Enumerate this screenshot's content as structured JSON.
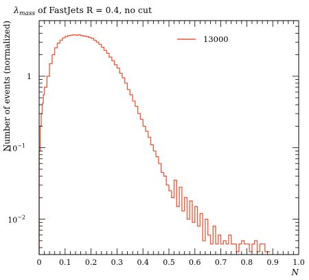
{
  "chart_data": {
    "type": "line",
    "style": "histogram-step",
    "title": "of FastJets R = 0.4, no cut",
    "title_symbol": "λ",
    "title_subscript": "mass",
    "xlabel": "N",
    "ylabel": "Number of events (normalized)",
    "xlim": [
      0,
      1
    ],
    "ylim": [
      0.0032,
      6
    ],
    "yscale": "log",
    "grid": false,
    "legend_position": "top-right",
    "x_ticks": [
      {
        "value": 0,
        "label": "0"
      },
      {
        "value": 0.1,
        "label": "0.1"
      },
      {
        "value": 0.2,
        "label": "0.2"
      },
      {
        "value": 0.3,
        "label": "0.3"
      },
      {
        "value": 0.4,
        "label": "0.4"
      },
      {
        "value": 0.5,
        "label": "0.5"
      },
      {
        "value": 0.6,
        "label": "0.6"
      },
      {
        "value": 0.7,
        "label": "0.7"
      },
      {
        "value": 0.8,
        "label": "0.8"
      },
      {
        "value": 0.9,
        "label": "0.9"
      },
      {
        "value": 1.0,
        "label": "1.0"
      }
    ],
    "y_ticks": [
      {
        "value": 1,
        "base": "1",
        "exp": ""
      },
      {
        "value": 0.1,
        "base": "10",
        "exp": "−1"
      },
      {
        "value": 0.01,
        "base": "10",
        "exp": "−2"
      }
    ],
    "series": [
      {
        "name": "13000",
        "color": "#ee5533",
        "x": [
          0.0,
          0.004,
          0.008,
          0.012,
          0.016,
          0.02,
          0.03,
          0.04,
          0.05,
          0.06,
          0.07,
          0.08,
          0.09,
          0.1,
          0.11,
          0.12,
          0.13,
          0.14,
          0.15,
          0.16,
          0.17,
          0.18,
          0.19,
          0.2,
          0.21,
          0.22,
          0.23,
          0.24,
          0.25,
          0.26,
          0.27,
          0.28,
          0.29,
          0.3,
          0.31,
          0.32,
          0.33,
          0.34,
          0.35,
          0.36,
          0.37,
          0.38,
          0.39,
          0.4,
          0.41,
          0.42,
          0.43,
          0.44,
          0.45,
          0.46,
          0.47,
          0.48,
          0.49,
          0.5,
          0.51,
          0.52,
          0.53,
          0.54,
          0.55,
          0.56,
          0.57,
          0.58,
          0.59,
          0.6,
          0.61,
          0.62,
          0.63,
          0.64,
          0.65,
          0.66,
          0.67,
          0.68,
          0.69,
          0.7,
          0.71,
          0.72,
          0.73,
          0.74,
          0.75,
          0.76,
          0.77,
          0.78,
          0.79,
          0.8,
          0.81,
          0.82,
          0.83,
          0.84,
          0.85,
          0.86,
          0.87,
          0.88
        ],
        "values": [
          0.09,
          0.2,
          0.3,
          0.42,
          0.55,
          0.7,
          1.0,
          1.5,
          2.0,
          2.5,
          2.9,
          3.2,
          3.45,
          3.6,
          3.7,
          3.75,
          3.8,
          3.75,
          3.8,
          3.7,
          3.65,
          3.6,
          3.5,
          3.4,
          3.2,
          3.0,
          2.8,
          2.55,
          2.3,
          2.1,
          1.85,
          1.65,
          1.45,
          1.3,
          1.1,
          0.95,
          0.8,
          0.65,
          0.55,
          0.45,
          0.38,
          0.3,
          0.25,
          0.2,
          0.17,
          0.14,
          0.11,
          0.09,
          0.075,
          0.06,
          0.045,
          0.04,
          0.03,
          0.025,
          0.02,
          0.035,
          0.015,
          0.028,
          0.013,
          0.02,
          0.01,
          0.018,
          0.009,
          0.015,
          0.008,
          0.012,
          0.005,
          0.01,
          0.006,
          0.0045,
          0.008,
          0.0045,
          0.006,
          0.0045,
          0.005,
          0.0045,
          0.006,
          0.0045,
          0.0045,
          0.0035,
          0.0045,
          0.005,
          0.0045,
          0.0045,
          0.0035,
          0.0045,
          0.005,
          0.0035,
          0.0045,
          0.0045,
          0.0035,
          0.0035
        ]
      }
    ]
  }
}
